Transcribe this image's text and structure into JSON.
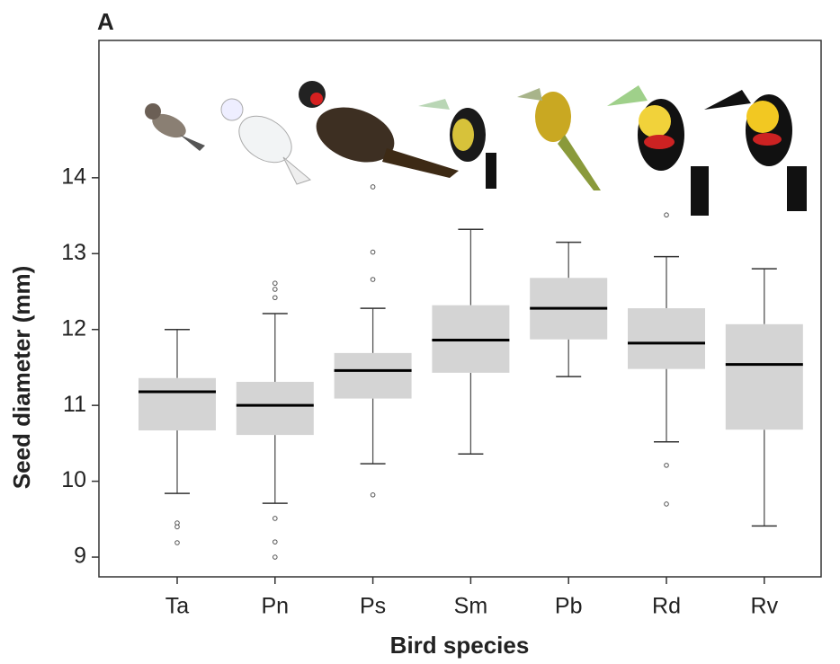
{
  "chart_data": {
    "type": "box",
    "panel_label": "A",
    "x_label": "Bird species",
    "y_label": "Seed diameter (mm)",
    "categories": [
      "Ta",
      "Pn",
      "Ps",
      "Sm",
      "Pb",
      "Rd",
      "Rv"
    ],
    "boxes": [
      {
        "whisker_low": 9.84,
        "q1": 10.67,
        "median": 11.18,
        "q3": 11.36,
        "whisker_high": 12.0,
        "outliers": [
          9.45,
          9.4,
          9.19
        ]
      },
      {
        "whisker_low": 9.71,
        "q1": 10.61,
        "median": 11.0,
        "q3": 11.31,
        "whisker_high": 12.21,
        "outliers": [
          12.61,
          12.53,
          12.42,
          9.51,
          9.2,
          9.0
        ]
      },
      {
        "whisker_low": 10.23,
        "q1": 11.09,
        "median": 11.46,
        "q3": 11.69,
        "whisker_high": 12.28,
        "outliers": [
          13.88,
          13.02,
          12.66,
          9.82
        ]
      },
      {
        "whisker_low": 10.36,
        "q1": 11.43,
        "median": 11.86,
        "q3": 12.32,
        "whisker_high": 13.32,
        "outliers": []
      },
      {
        "whisker_low": 11.38,
        "q1": 11.87,
        "median": 12.28,
        "q3": 12.68,
        "whisker_high": 13.15,
        "outliers": []
      },
      {
        "whisker_low": 10.52,
        "q1": 11.48,
        "median": 11.82,
        "q3": 12.28,
        "whisker_high": 12.96,
        "outliers": [
          13.51,
          10.21,
          9.7
        ]
      },
      {
        "whisker_low": 9.41,
        "q1": 10.68,
        "median": 11.54,
        "q3": 12.07,
        "whisker_high": 12.8,
        "outliers": []
      }
    ],
    "color": "#d4d4d4",
    "ylim": [
      8.74,
      15.81
    ],
    "yticks": [
      9,
      10,
      11,
      12,
      13,
      14
    ]
  }
}
